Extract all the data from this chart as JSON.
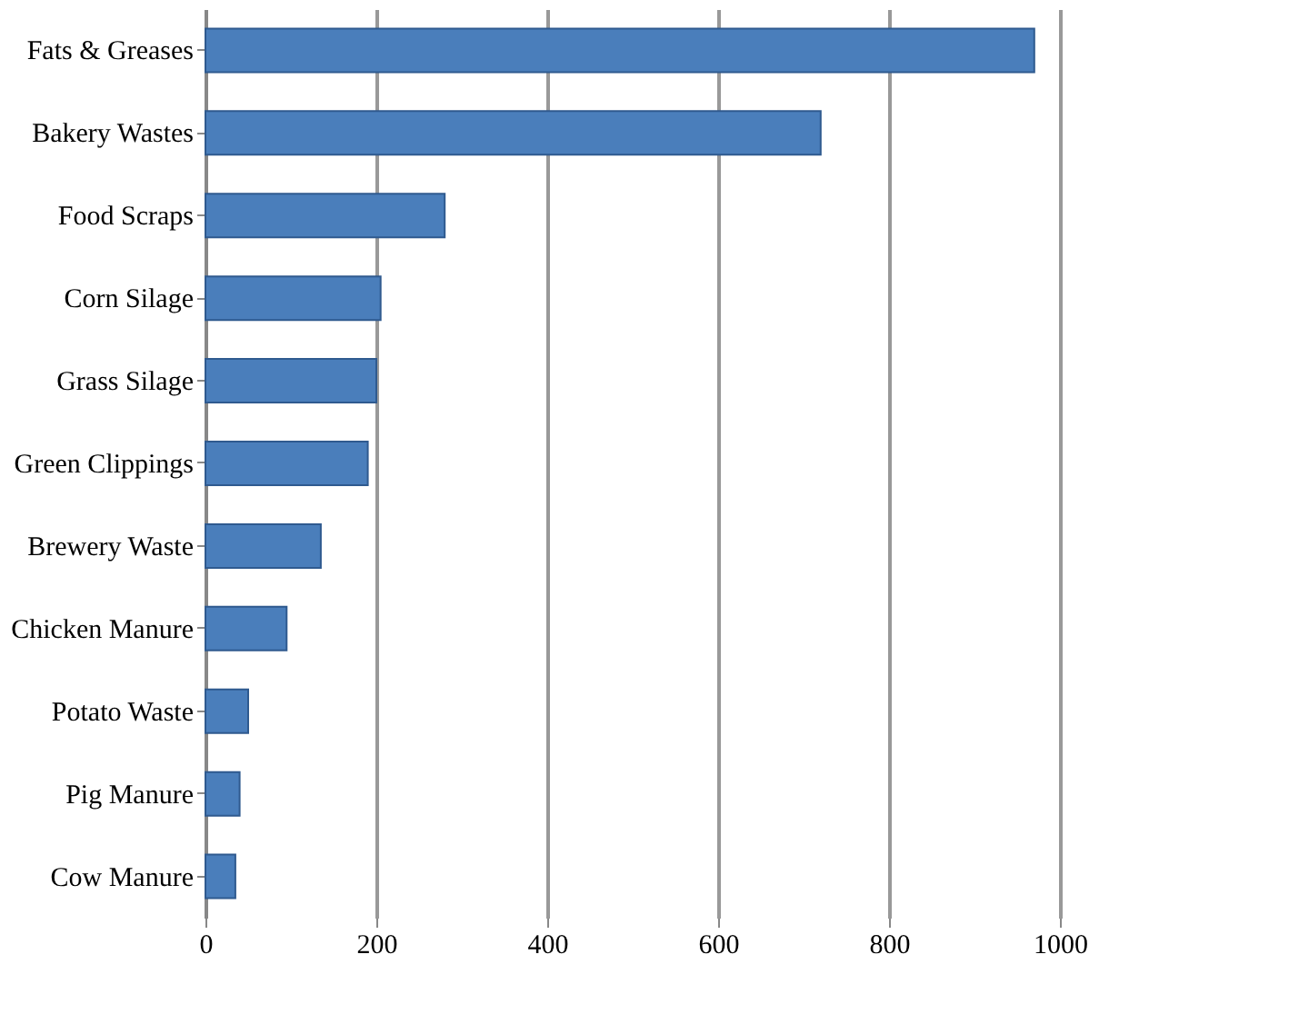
{
  "chart_data": {
    "type": "bar",
    "orientation": "horizontal",
    "categories": [
      "Fats & Greases",
      "Bakery Wastes",
      "Food Scraps",
      "Corn Silage",
      "Grass Silage",
      "Green Clippings",
      "Brewery Waste",
      "Chicken Manure",
      "Potato Waste",
      "Pig Manure",
      "Cow Manure"
    ],
    "values": [
      970,
      720,
      280,
      205,
      200,
      190,
      135,
      95,
      50,
      40,
      35
    ],
    "color": "#4a7ebb",
    "xlim": [
      0,
      1000
    ],
    "xticks": [
      0,
      200,
      400,
      600,
      800,
      1000
    ],
    "grid": "x"
  }
}
